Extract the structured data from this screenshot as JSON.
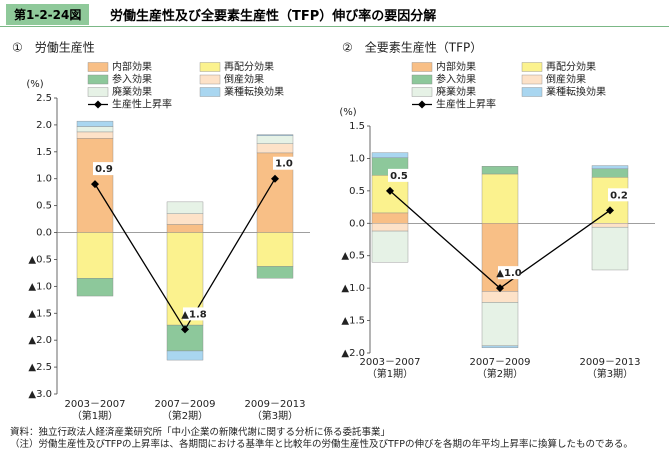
{
  "header": {
    "figure_no": "第1-2-24図",
    "title": "労働生産性及び全要素生産性（TFP）伸び率の要因分解"
  },
  "chart_data": [
    {
      "type": "bar",
      "stacked": true,
      "title": "①　労働生産性",
      "y_unit": "(%)",
      "categories": [
        "2003－2007",
        "2007－2009",
        "2009－2013"
      ],
      "periods": [
        "（第1期）",
        "（第2期）",
        "（第3期）"
      ],
      "ylim": [
        -3.0,
        2.5
      ],
      "yticks": [
        {
          "value": 2.5,
          "label": "2.5"
        },
        {
          "value": 2.0,
          "label": "2.0"
        },
        {
          "value": 1.5,
          "label": "1.5"
        },
        {
          "value": 1.0,
          "label": "1.0"
        },
        {
          "value": 0.5,
          "label": "0.5"
        },
        {
          "value": 0.0,
          "label": "0.0"
        },
        {
          "value": -0.5,
          "label": "▲0.5"
        },
        {
          "value": -1.0,
          "label": "▲1.0"
        },
        {
          "value": -1.5,
          "label": "▲1.5"
        },
        {
          "value": -2.0,
          "label": "▲2.0"
        },
        {
          "value": -2.5,
          "label": "▲2.5"
        },
        {
          "value": -3.0,
          "label": "▲3.0"
        }
      ],
      "series": [
        {
          "name": "内部効果",
          "color": "#f8bf86",
          "values": [
            1.75,
            0.15,
            1.48
          ]
        },
        {
          "name": "再配分効果",
          "color": "#fbf28e",
          "values": [
            -0.85,
            -1.72,
            -0.63
          ]
        },
        {
          "name": "参入効果",
          "color": "#8dc89b",
          "values": [
            -0.33,
            -0.48,
            -0.22
          ]
        },
        {
          "name": "倒産効果",
          "color": "#fde2c8",
          "values": [
            0.12,
            0.2,
            0.17
          ]
        },
        {
          "name": "廃業効果",
          "color": "#e6f2e6",
          "values": [
            0.1,
            0.22,
            0.15
          ]
        },
        {
          "name": "業種転換効果",
          "color": "#a9d6f0",
          "values": [
            0.1,
            -0.17,
            0.02
          ]
        },
        {
          "name": "生産性上昇率",
          "type": "line",
          "color": "#000000",
          "values": [
            0.9,
            -1.8,
            1.0
          ],
          "value_labels": [
            "0.9",
            "▲1.8",
            "1.0"
          ]
        }
      ]
    },
    {
      "type": "bar",
      "stacked": true,
      "title": "②　全要素生産性（TFP）",
      "y_unit": "(%)",
      "categories": [
        "2003－2007",
        "2007－2009",
        "2009－2013"
      ],
      "periods": [
        "（第1期）",
        "（第2期）",
        "（第3期）"
      ],
      "ylim": [
        -2.0,
        1.5
      ],
      "yticks": [
        {
          "value": 1.5,
          "label": "1.5"
        },
        {
          "value": 1.0,
          "label": "1.0"
        },
        {
          "value": 0.5,
          "label": "0.5"
        },
        {
          "value": 0.0,
          "label": "0.0"
        },
        {
          "value": -0.5,
          "label": "▲0.5"
        },
        {
          "value": -1.0,
          "label": "▲1.0"
        },
        {
          "value": -1.5,
          "label": "▲1.5"
        },
        {
          "value": -2.0,
          "label": "▲2.0"
        }
      ],
      "series": [
        {
          "name": "内部効果",
          "color": "#f8bf86",
          "values": [
            0.16,
            -1.05,
            0
          ]
        },
        {
          "name": "再配分効果",
          "color": "#fbf28e",
          "values": [
            0.58,
            0.76,
            0.71
          ]
        },
        {
          "name": "参入効果",
          "color": "#8dc89b",
          "values": [
            0.27,
            0.12,
            0.13
          ]
        },
        {
          "name": "倒産効果",
          "color": "#fde2c8",
          "values": [
            -0.12,
            -0.17,
            -0.06
          ]
        },
        {
          "name": "廃業効果",
          "color": "#e6f2e6",
          "values": [
            -0.48,
            -0.67,
            -0.66
          ]
        },
        {
          "name": "業種転換効果",
          "color": "#a9d6f0",
          "values": [
            0.08,
            -0.03,
            0.05
          ]
        },
        {
          "name": "生産性上昇率",
          "type": "line",
          "color": "#000000",
          "values": [
            0.5,
            -1.0,
            0.2
          ],
          "value_labels": [
            "0.5",
            "▲1.0",
            "0.2"
          ]
        }
      ]
    }
  ],
  "notes": [
    "資料：独立行政法人経済産業研究所「中小企業の新陳代謝に関する分析に係る委託事業」",
    "（注）労働生産性及びTFPの上昇率は、各期間における基準年と比較年の労働生産性及びTFPの伸びを各期の年平均上昇率に換算したものである。"
  ]
}
